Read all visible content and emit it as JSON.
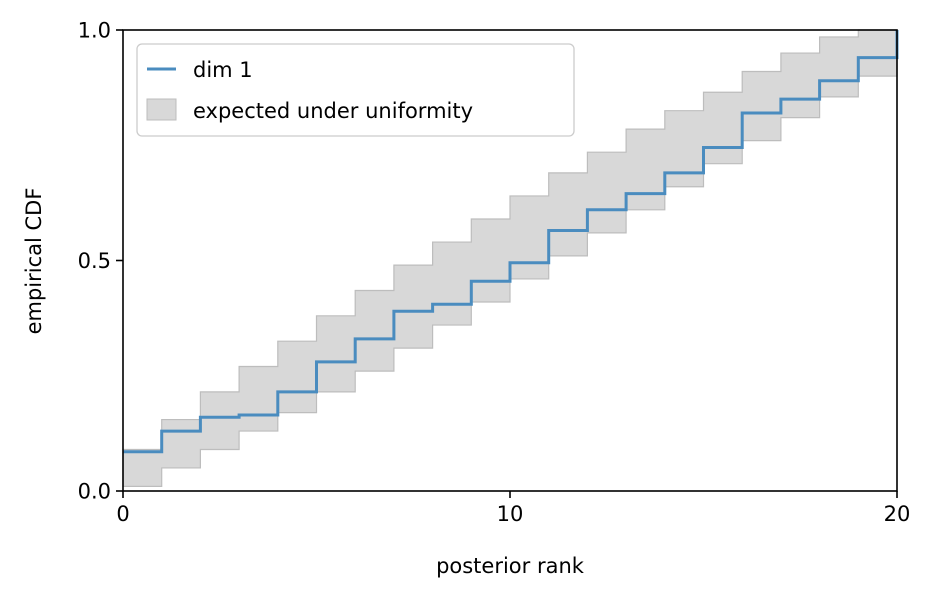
{
  "chart_data": {
    "type": "line",
    "xlabel": "posterior rank",
    "ylabel": "empirical CDF",
    "xlim": [
      0,
      20
    ],
    "ylim": [
      0,
      1
    ],
    "xticks": [
      0,
      10,
      20
    ],
    "xtick_labels": [
      "0",
      "10",
      "20"
    ],
    "yticks": [
      0,
      0.5,
      1
    ],
    "ytick_labels": [
      "0.0",
      "0.5",
      "1.0"
    ],
    "grid": false,
    "legend_position": "top-left",
    "colors": {
      "line": "#4a8cbf",
      "band_fill": "#d8d8d8",
      "band_edge": "#bdbdbd"
    },
    "series": [
      {
        "name": "dim 1",
        "kind": "step",
        "x": [
          0,
          1,
          2,
          3,
          4,
          5,
          6,
          7,
          8,
          9,
          10,
          11,
          12,
          13,
          14,
          15,
          16,
          17,
          18,
          19,
          20
        ],
        "y": [
          0.085,
          0.13,
          0.16,
          0.165,
          0.215,
          0.28,
          0.33,
          0.39,
          0.405,
          0.455,
          0.495,
          0.565,
          0.61,
          0.645,
          0.69,
          0.745,
          0.82,
          0.85,
          0.89,
          0.94,
          1.0
        ]
      }
    ],
    "band": {
      "name": "expected under uniformity",
      "x": [
        0,
        1,
        2,
        3,
        4,
        5,
        6,
        7,
        8,
        9,
        10,
        11,
        12,
        13,
        14,
        15,
        16,
        17,
        18,
        19,
        20
      ],
      "lower": [
        0.01,
        0.05,
        0.09,
        0.13,
        0.17,
        0.215,
        0.26,
        0.31,
        0.36,
        0.41,
        0.46,
        0.51,
        0.56,
        0.61,
        0.66,
        0.71,
        0.76,
        0.81,
        0.855,
        0.9,
        1.0
      ],
      "upper": [
        0.09,
        0.155,
        0.215,
        0.27,
        0.325,
        0.38,
        0.435,
        0.49,
        0.54,
        0.59,
        0.64,
        0.69,
        0.735,
        0.785,
        0.825,
        0.865,
        0.91,
        0.95,
        0.985,
        1.0,
        1.0
      ]
    }
  }
}
